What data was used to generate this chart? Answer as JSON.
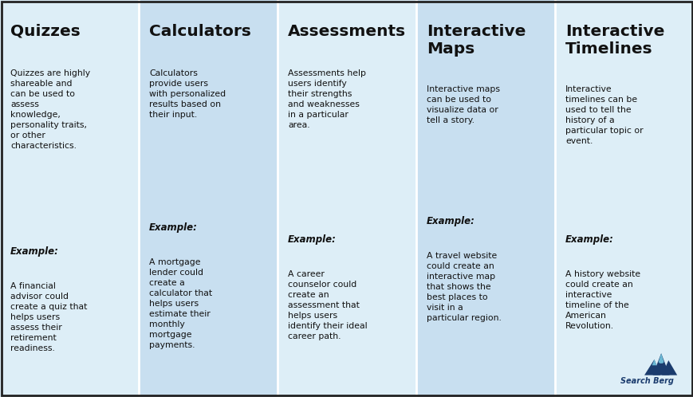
{
  "bg_outer": "#ddeef7",
  "col_colors": [
    "#ddeef7",
    "#c8dff0",
    "#ddeef7",
    "#c8dff0",
    "#ddeef7"
  ],
  "border_color": "#222222",
  "title_color": "#111111",
  "text_color": "#111111",
  "divider_color": "#aaccdd",
  "columns": [
    {
      "title": "Quizzes",
      "title_lines": 1,
      "description": "Quizzes are highly\nshareable and\ncan be used to\nassess\nknowledge,\npersonality traits,\nor other\ncharacteristics.",
      "example_text": "A financial\nadvisor could\ncreate a quiz that\nhelps users\nassess their\nretirement\nreadiness."
    },
    {
      "title": "Calculators",
      "title_lines": 1,
      "description": "Calculators\nprovide users\nwith personalized\nresults based on\ntheir input.",
      "example_text": "A mortgage\nlender could\ncreate a\ncalculator that\nhelps users\nestimate their\nmonthly\nmortgage\npayments."
    },
    {
      "title": "Assessments",
      "title_lines": 1,
      "description": "Assessments help\nusers identify\ntheir strengths\nand weaknesses\nin a particular\narea.",
      "example_text": "A career\ncounselor could\ncreate an\nassessment that\nhelps users\nidentify their ideal\ncareer path."
    },
    {
      "title": "Interactive\nMaps",
      "title_lines": 2,
      "description": "Interactive maps\ncan be used to\nvisualize data or\ntell a story.",
      "example_text": "A travel website\ncould create an\ninteractive map\nthat shows the\nbest places to\nvisit in a\nparticular region."
    },
    {
      "title": "Interactive\nTimelines",
      "title_lines": 2,
      "description": "Interactive\ntimelines can be\nused to tell the\nhistory of a\nparticular topic or\nevent.",
      "example_text": "A history website\ncould create an\ninteractive\ntimeline of the\nAmerican\nRevolution."
    }
  ],
  "example_label": "Example:",
  "fig_width": 8.7,
  "fig_height": 4.98,
  "dpi": 100
}
